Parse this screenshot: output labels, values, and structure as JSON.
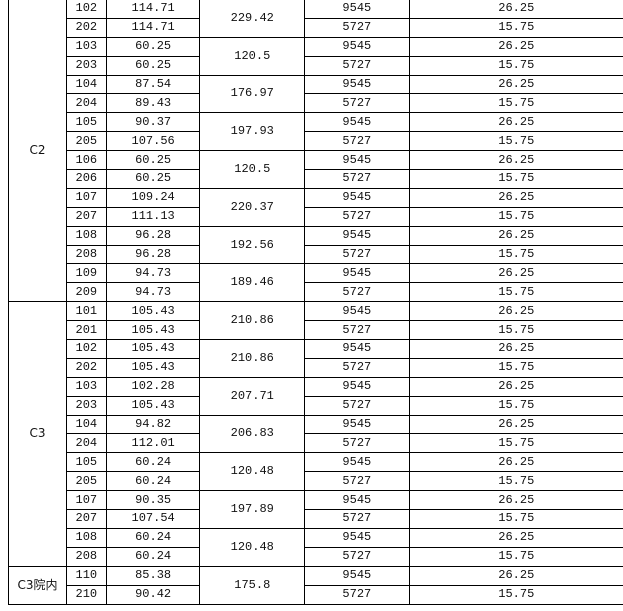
{
  "groups": [
    {
      "name": "C2",
      "pairs": [
        {
          "rooms": [
            "102",
            "202"
          ],
          "areas": [
            "114.71",
            "114.71"
          ],
          "total": "229.42"
        },
        {
          "rooms": [
            "103",
            "203"
          ],
          "areas": [
            "60.25",
            "60.25"
          ],
          "total": "120.5"
        },
        {
          "rooms": [
            "104",
            "204"
          ],
          "areas": [
            "87.54",
            "89.43"
          ],
          "total": "176.97"
        },
        {
          "rooms": [
            "105",
            "205"
          ],
          "areas": [
            "90.37",
            "107.56"
          ],
          "total": "197.93"
        },
        {
          "rooms": [
            "106",
            "206"
          ],
          "areas": [
            "60.25",
            "60.25"
          ],
          "total": "120.5"
        },
        {
          "rooms": [
            "107",
            "207"
          ],
          "areas": [
            "109.24",
            "111.13"
          ],
          "total": "220.37"
        },
        {
          "rooms": [
            "108",
            "208"
          ],
          "areas": [
            "96.28",
            "96.28"
          ],
          "total": "192.56"
        },
        {
          "rooms": [
            "109",
            "209"
          ],
          "areas": [
            "94.73",
            "94.73"
          ],
          "total": "189.46"
        }
      ]
    },
    {
      "name": "C3",
      "pairs": [
        {
          "rooms": [
            "101",
            "201"
          ],
          "areas": [
            "105.43",
            "105.43"
          ],
          "total": "210.86"
        },
        {
          "rooms": [
            "102",
            "202"
          ],
          "areas": [
            "105.43",
            "105.43"
          ],
          "total": "210.86"
        },
        {
          "rooms": [
            "103",
            "203"
          ],
          "areas": [
            "102.28",
            "105.43"
          ],
          "total": "207.71"
        },
        {
          "rooms": [
            "104",
            "204"
          ],
          "areas": [
            "94.82",
            "112.01"
          ],
          "total": "206.83"
        },
        {
          "rooms": [
            "105",
            "205"
          ],
          "areas": [
            "60.24",
            "60.24"
          ],
          "total": "120.48"
        },
        {
          "rooms": [
            "107",
            "207"
          ],
          "areas": [
            "90.35",
            "107.54"
          ],
          "total": "197.89"
        },
        {
          "rooms": [
            "108",
            "208"
          ],
          "areas": [
            "60.24",
            "60.24"
          ],
          "total": "120.48"
        }
      ]
    },
    {
      "name": "C3院内",
      "pairs": [
        {
          "rooms": [
            "110",
            "210"
          ],
          "areas": [
            "85.38",
            "90.42"
          ],
          "total": "175.8"
        }
      ]
    }
  ],
  "prices": [
    "9545",
    "5727"
  ],
  "rates": [
    "26.25",
    "15.75"
  ]
}
